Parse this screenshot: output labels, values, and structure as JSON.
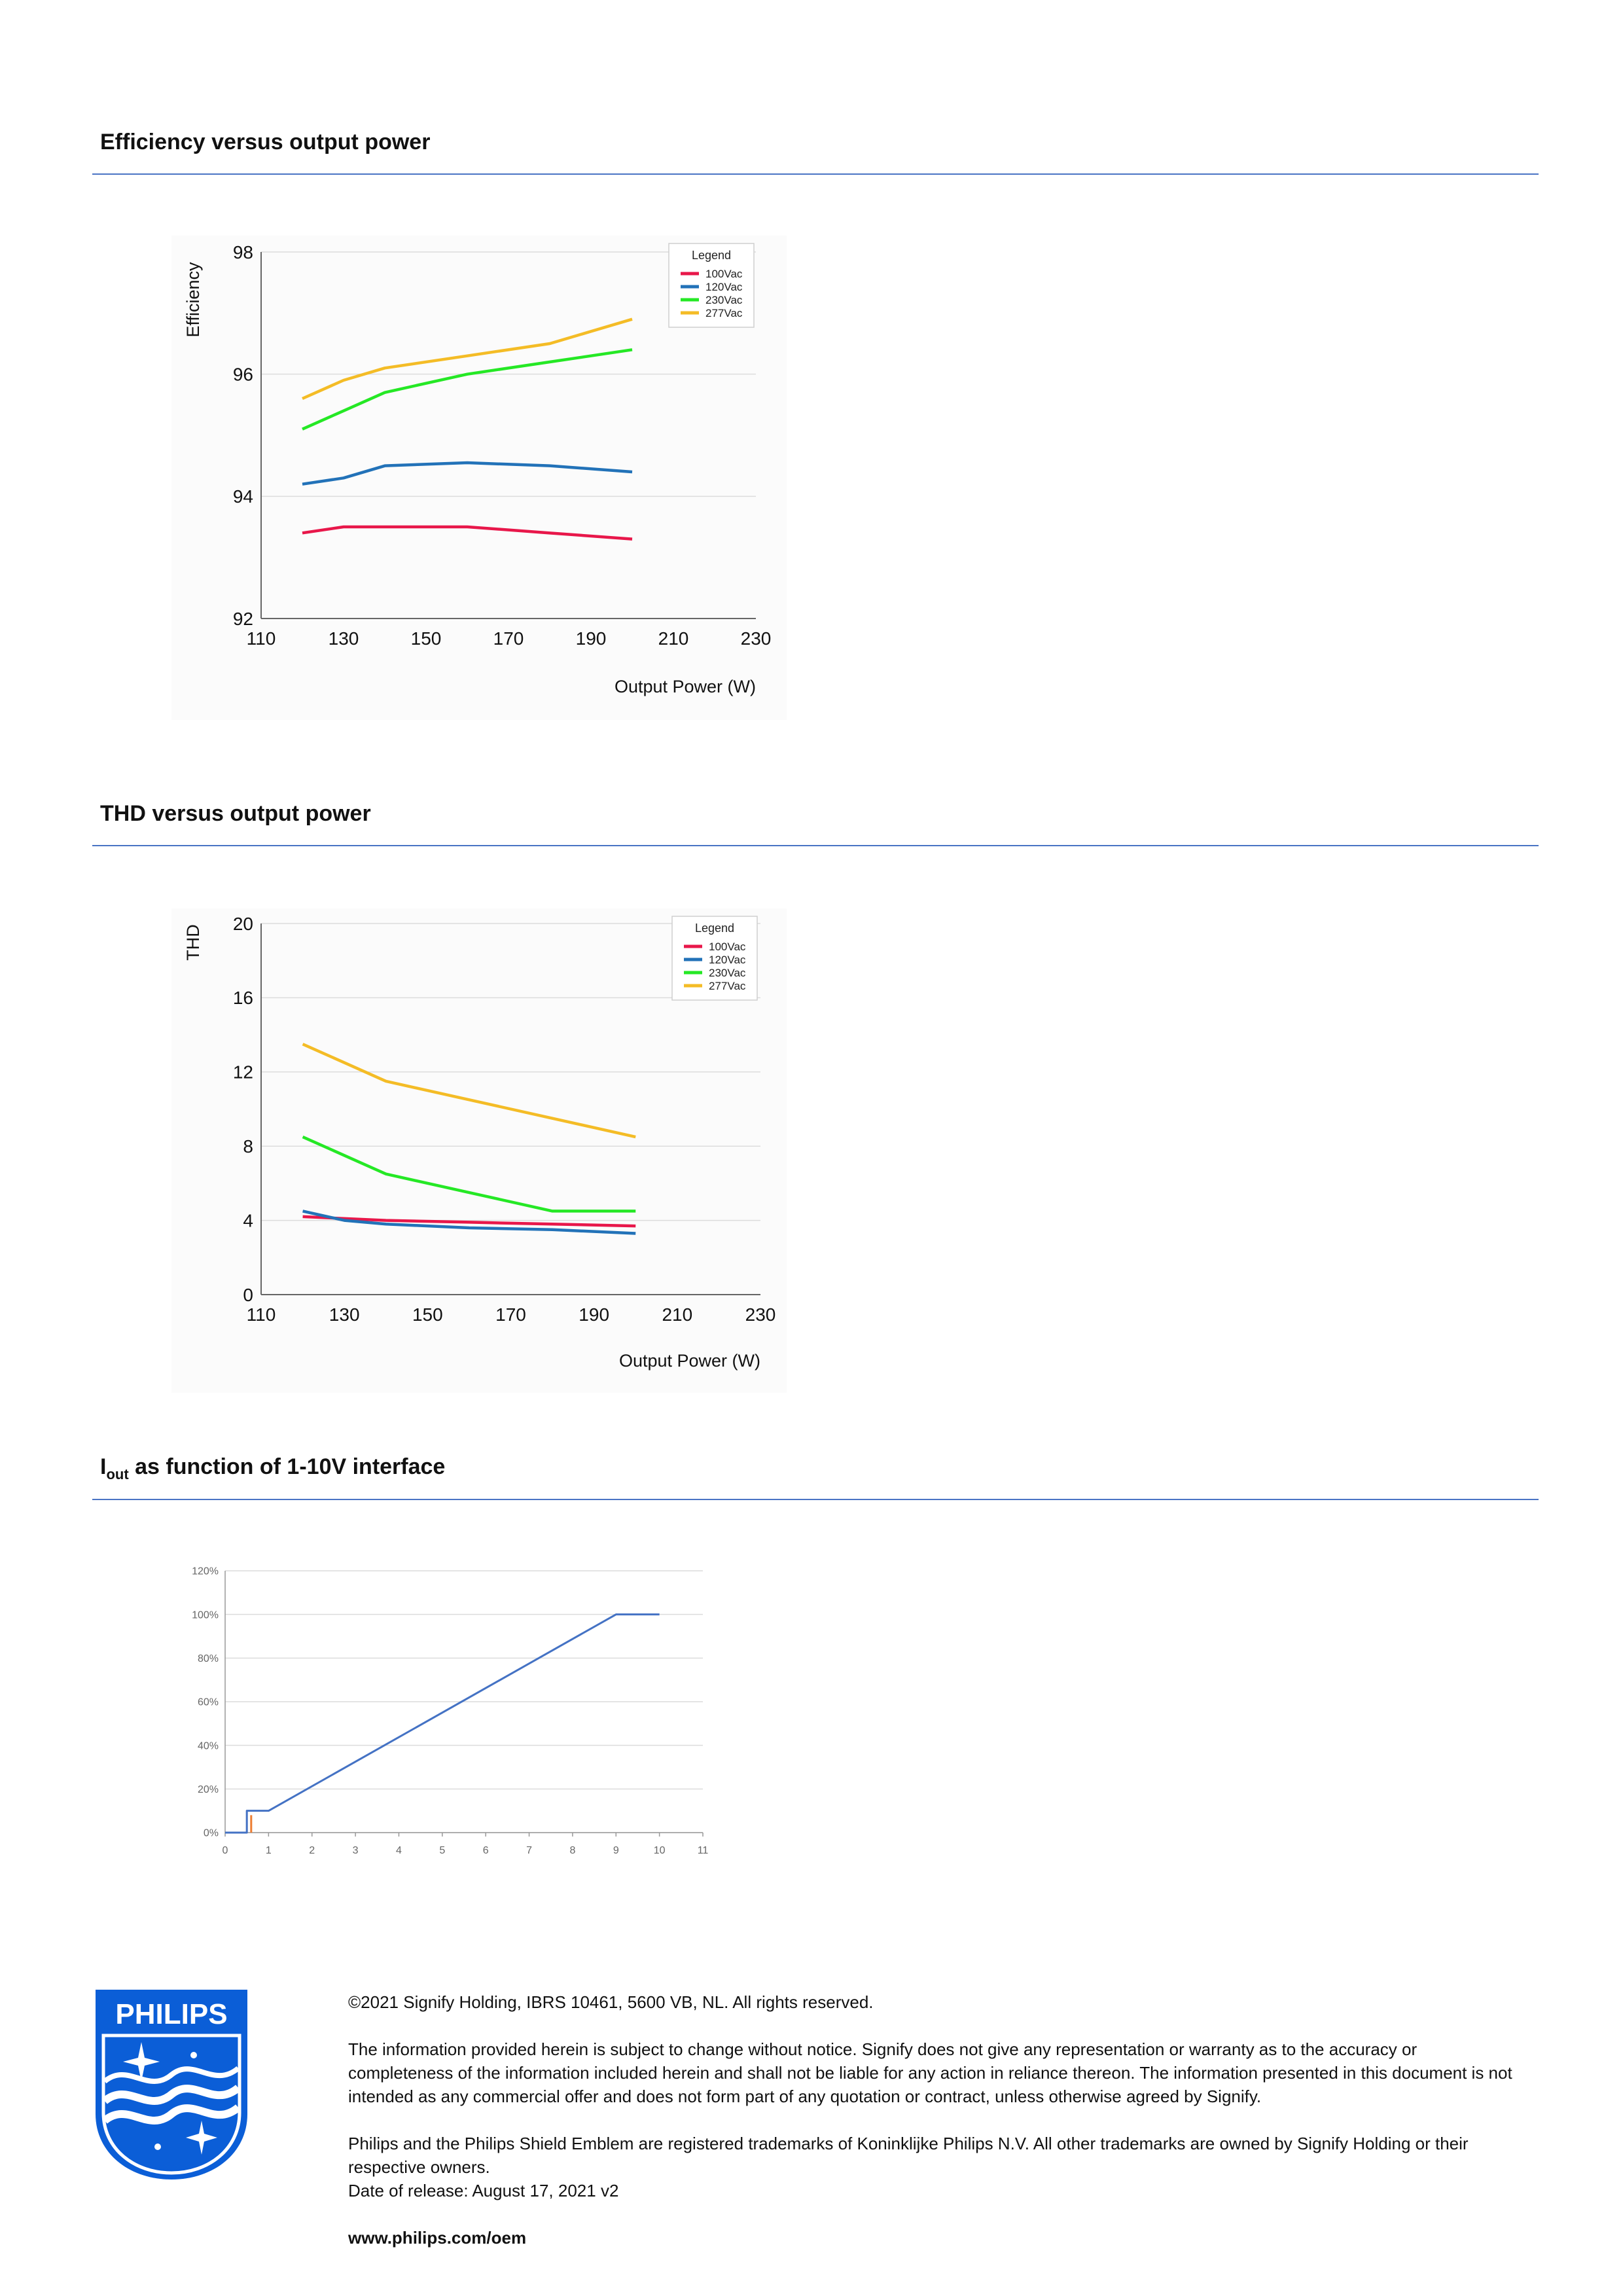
{
  "sections": {
    "efficiency_title": "Efficiency versus output power",
    "thd_title": "THD versus output power",
    "iout_title_main": "I",
    "iout_title_sub": "out",
    "iout_title_rest": " as function of 1-10V interface"
  },
  "colors": {
    "rule": "#4a74c4",
    "v100": "#e8174a",
    "v120": "#2272b8",
    "v230": "#25e825",
    "v277": "#f4bc26",
    "iout_line": "#4472c4",
    "iout_marker": "#ed7d31",
    "philips_blue": "#0b5ed7"
  },
  "chart_data": [
    {
      "type": "line",
      "title": "",
      "xlabel": "Output Power (W)",
      "ylabel": "Efficiency",
      "xlim": [
        110,
        230
      ],
      "ylim": [
        92,
        98
      ],
      "xticks": [
        110,
        130,
        150,
        170,
        190,
        210,
        230
      ],
      "yticks": [
        92,
        94,
        96,
        98
      ],
      "grid": true,
      "legend_title": "Legend",
      "legend_position": "top-right",
      "series": [
        {
          "name": "100Vac",
          "color": "#e8174a",
          "x": [
            120,
            130,
            140,
            160,
            180,
            200
          ],
          "y": [
            93.4,
            93.5,
            93.5,
            93.5,
            93.4,
            93.3
          ]
        },
        {
          "name": "120Vac",
          "color": "#2272b8",
          "x": [
            120,
            130,
            140,
            160,
            180,
            200
          ],
          "y": [
            94.2,
            94.3,
            94.5,
            94.55,
            94.5,
            94.4
          ]
        },
        {
          "name": "230Vac",
          "color": "#25e825",
          "x": [
            120,
            130,
            140,
            160,
            180,
            200
          ],
          "y": [
            95.1,
            95.4,
            95.7,
            96.0,
            96.2,
            96.4
          ]
        },
        {
          "name": "277Vac",
          "color": "#f4bc26",
          "x": [
            120,
            130,
            140,
            160,
            180,
            200
          ],
          "y": [
            95.6,
            95.9,
            96.1,
            96.3,
            96.5,
            96.9
          ]
        }
      ]
    },
    {
      "type": "line",
      "title": "",
      "xlabel": "Output Power (W)",
      "ylabel": "THD",
      "xlim": [
        110,
        230
      ],
      "ylim": [
        0,
        20
      ],
      "xticks": [
        110,
        130,
        150,
        170,
        190,
        210,
        230
      ],
      "yticks": [
        0,
        4,
        8,
        12,
        16,
        20
      ],
      "grid": true,
      "legend_title": "Legend",
      "legend_position": "top-right",
      "series": [
        {
          "name": "100Vac",
          "color": "#e8174a",
          "x": [
            120,
            140,
            160,
            180,
            200
          ],
          "y": [
            4.2,
            4.0,
            3.9,
            3.8,
            3.7
          ]
        },
        {
          "name": "120Vac",
          "color": "#2272b8",
          "x": [
            120,
            130,
            140,
            160,
            180,
            200
          ],
          "y": [
            4.5,
            4.0,
            3.8,
            3.6,
            3.5,
            3.3
          ]
        },
        {
          "name": "230Vac",
          "color": "#25e825",
          "x": [
            120,
            140,
            160,
            180,
            200
          ],
          "y": [
            8.5,
            6.5,
            5.5,
            4.5,
            4.5
          ]
        },
        {
          "name": "277Vac",
          "color": "#f4bc26",
          "x": [
            120,
            140,
            160,
            180,
            200
          ],
          "y": [
            13.5,
            11.5,
            10.5,
            9.5,
            8.5
          ]
        }
      ]
    },
    {
      "type": "line",
      "title": "",
      "xlabel": "",
      "ylabel": "",
      "xlim": [
        0,
        11
      ],
      "ylim": [
        0,
        120
      ],
      "xticks": [
        0,
        1,
        2,
        3,
        4,
        5,
        6,
        7,
        8,
        9,
        10,
        11
      ],
      "yticks": [
        "0%",
        "20%",
        "40%",
        "60%",
        "80%",
        "100%",
        "120%"
      ],
      "ytick_values": [
        0,
        20,
        40,
        60,
        80,
        100,
        120
      ],
      "grid": true,
      "series": [
        {
          "color": "#4472c4",
          "x": [
            0,
            0.5,
            0.5,
            1,
            9,
            10
          ],
          "y": [
            0,
            0,
            10,
            10,
            100,
            100
          ]
        },
        {
          "color": "#ed7d31",
          "x": [
            0.6,
            0.6
          ],
          "y": [
            0,
            8
          ]
        }
      ]
    }
  ],
  "footer": {
    "copyright": "©2021 Signify Holding, IBRS 10461, 5600 VB, NL. All rights reserved.",
    "disclaimer": "The information provided herein is subject to change without notice. Signify does not give any representation or warranty as to the accuracy or completeness of the information included herein and shall not be liable for any action in reliance thereon. The information presented in this document is not intended as any commercial offer and does not form part of any quotation or contract, unless otherwise agreed by Signify.",
    "trademarks": "Philips and the Philips Shield Emblem are registered trademarks of Koninklijke Philips N.V. All other trademarks are owned by Signify Holding or their respective owners.",
    "release": "Date of release: August 17, 2021 v2",
    "website": "www.philips.com/oem"
  },
  "logo": {
    "wordmark": "PHILIPS"
  }
}
